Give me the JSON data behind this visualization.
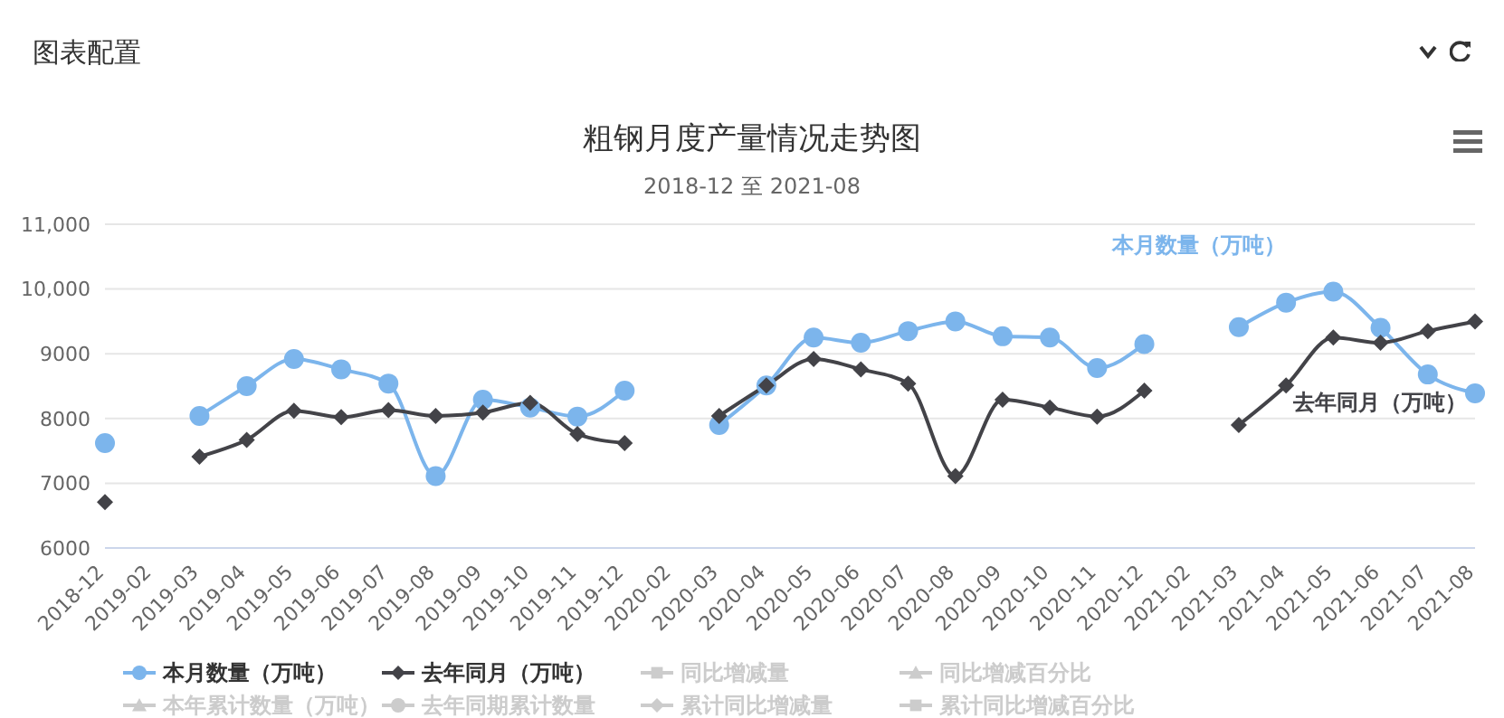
{
  "chart_data": {
    "type": "line",
    "title": "粗钢月度产量情况走势图",
    "subtitle": "2018-12 至 2021-08",
    "categories": [
      "2018-12",
      "2019-02",
      "2019-03",
      "2019-04",
      "2019-05",
      "2019-06",
      "2019-07",
      "2019-08",
      "2019-09",
      "2019-10",
      "2019-11",
      "2019-12",
      "2020-02",
      "2020-03",
      "2020-04",
      "2020-05",
      "2020-06",
      "2020-07",
      "2020-08",
      "2020-09",
      "2020-10",
      "2020-11",
      "2020-12",
      "2021-02",
      "2021-03",
      "2021-04",
      "2021-05",
      "2021-06",
      "2021-07",
      "2021-08"
    ],
    "series": [
      {
        "name": "本月数量（万吨）",
        "color": "#7cb5ec",
        "marker": "circle",
        "values": [
          7620,
          null,
          8040,
          8500,
          8920,
          8760,
          8540,
          7110,
          8290,
          8170,
          8030,
          8430,
          null,
          7900,
          8510,
          9250,
          9170,
          9350,
          9500,
          9270,
          9250,
          8780,
          9150,
          null,
          9410,
          9790,
          9960,
          9400,
          8680,
          8390
        ]
      },
      {
        "name": "去年同月（万吨）",
        "color": "#434348",
        "marker": "diamond",
        "values": [
          6710,
          null,
          7410,
          7670,
          8120,
          8020,
          8130,
          8040,
          8090,
          8240,
          7760,
          7620,
          null,
          8040,
          8510,
          8920,
          8760,
          8540,
          7110,
          8290,
          8170,
          8030,
          8430,
          null,
          7900,
          8510,
          9250,
          9170,
          9350,
          9500
        ]
      },
      {
        "name": "同比增减量",
        "color": "#cccccc",
        "marker": "square",
        "values": [
          null,
          null,
          null,
          null,
          null,
          null,
          null,
          null,
          null,
          null,
          null,
          null,
          null,
          null,
          null,
          null,
          null,
          null,
          null,
          null,
          null,
          null,
          null,
          null,
          null,
          null,
          null,
          null,
          null,
          null
        ]
      },
      {
        "name": "同比增减百分比",
        "color": "#cccccc",
        "marker": "triangle",
        "values": [
          null,
          null,
          null,
          null,
          null,
          null,
          null,
          null,
          null,
          null,
          null,
          null,
          null,
          null,
          null,
          null,
          null,
          null,
          null,
          null,
          null,
          null,
          null,
          null,
          null,
          null,
          null,
          null,
          null,
          null
        ]
      },
      {
        "name": "本年累计数量（万吨）",
        "color": "#cccccc",
        "marker": "triangle",
        "values": [
          null,
          null,
          null,
          null,
          null,
          null,
          null,
          null,
          null,
          null,
          null,
          null,
          null,
          null,
          null,
          null,
          null,
          null,
          null,
          null,
          null,
          null,
          null,
          null,
          null,
          null,
          null,
          null,
          null,
          null
        ]
      },
      {
        "name": "去年同期累计数量",
        "color": "#cccccc",
        "marker": "circle",
        "values": [
          null,
          null,
          null,
          null,
          null,
          null,
          null,
          null,
          null,
          null,
          null,
          null,
          null,
          null,
          null,
          null,
          null,
          null,
          null,
          null,
          null,
          null,
          null,
          null,
          null,
          null,
          null,
          null,
          null,
          null
        ]
      },
      {
        "name": "累计同比增减量",
        "color": "#cccccc",
        "marker": "diamond",
        "values": [
          null,
          null,
          null,
          null,
          null,
          null,
          null,
          null,
          null,
          null,
          null,
          null,
          null,
          null,
          null,
          null,
          null,
          null,
          null,
          null,
          null,
          null,
          null,
          null,
          null,
          null,
          null,
          null,
          null,
          null
        ]
      },
      {
        "name": "累计同比增减百分比",
        "color": "#cccccc",
        "marker": "square",
        "values": [
          null,
          null,
          null,
          null,
          null,
          null,
          null,
          null,
          null,
          null,
          null,
          null,
          null,
          null,
          null,
          null,
          null,
          null,
          null,
          null,
          null,
          null,
          null,
          null,
          null,
          null,
          null,
          null,
          null,
          null
        ]
      }
    ],
    "ylim": [
      6000,
      11000
    ],
    "yticks": [
      6000,
      7000,
      8000,
      9000,
      {
        "value": 10000,
        "label": "10,000"
      },
      {
        "value": 11000,
        "label": "11,000"
      }
    ],
    "grid": "y",
    "legend": "bottom",
    "annotations": [
      "图表配置",
      "本月数量（万吨）",
      "去年同月（万吨）"
    ]
  }
}
